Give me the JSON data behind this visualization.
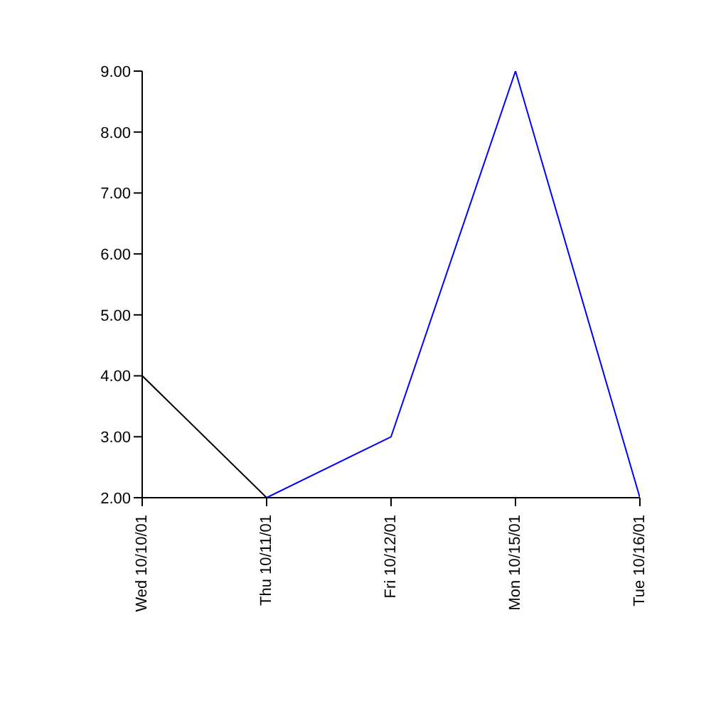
{
  "chart_data": {
    "type": "line",
    "categories": [
      "Wed 10/10/01",
      "Thu 10/11/01",
      "Fri 10/12/01",
      "Mon 10/15/01",
      "Tue 10/16/01"
    ],
    "series": [
      {
        "color": "#000000",
        "values": [
          4,
          2,
          null,
          null,
          null
        ]
      },
      {
        "color": "#0000ff",
        "values": [
          null,
          2,
          3,
          9,
          2
        ]
      }
    ],
    "ylim": [
      2,
      9
    ],
    "yticks": [
      {
        "value": 2,
        "label": "2.00"
      },
      {
        "value": 3,
        "label": "3.00"
      },
      {
        "value": 4,
        "label": "4.00"
      },
      {
        "value": 5,
        "label": "5.00"
      },
      {
        "value": 6,
        "label": "6.00"
      },
      {
        "value": 7,
        "label": "7.00"
      },
      {
        "value": 8,
        "label": "8.00"
      },
      {
        "value": 9,
        "label": "9.00"
      }
    ],
    "grid": false,
    "legend": false,
    "marker": "none",
    "line_style": "solid"
  }
}
